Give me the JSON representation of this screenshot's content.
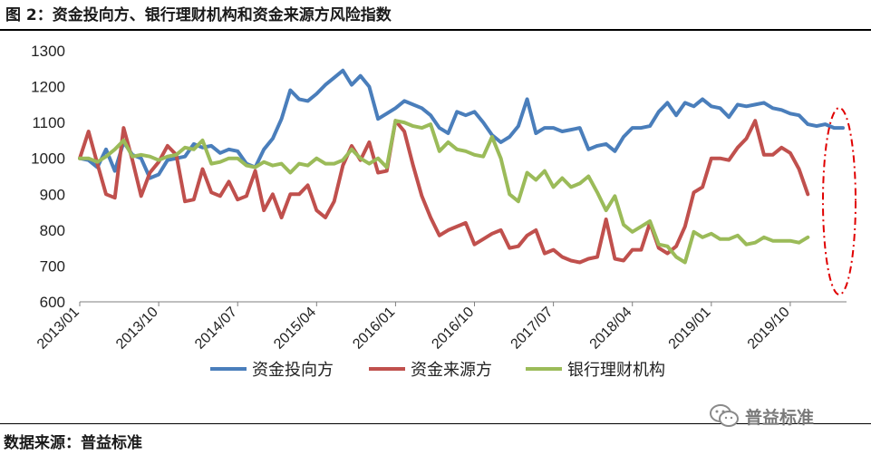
{
  "header": {
    "title": "图 2：资金投向方、银行理财机构和资金来源方风险指数"
  },
  "footer": {
    "source": "数据来源：普益标准",
    "watermark": "普益标准"
  },
  "chart_data": {
    "type": "line",
    "title": "",
    "xlabel": "",
    "ylabel": "",
    "ylim": [
      600,
      1300
    ],
    "yticks": [
      600,
      700,
      800,
      900,
      1000,
      1100,
      1200,
      1300
    ],
    "x_start": "2013/01",
    "x_tick_labels": [
      "2013/01",
      "2013/10",
      "2014/07",
      "2015/04",
      "2016/01",
      "2016/10",
      "2017/07",
      "2018/04",
      "2019/01",
      "2019/10"
    ],
    "legend_position": "bottom",
    "grid": false,
    "series": [
      {
        "name": "资金投向方",
        "color": "#4a7ebb",
        "values": [
          1000,
          995,
          975,
          1025,
          965,
          1045,
          1010,
          1000,
          945,
          955,
          995,
          1000,
          1005,
          1040,
          1030,
          1035,
          1015,
          1025,
          1020,
          985,
          975,
          1025,
          1055,
          1110,
          1190,
          1165,
          1160,
          1180,
          1205,
          1225,
          1245,
          1205,
          1230,
          1200,
          1110,
          1125,
          1140,
          1160,
          1150,
          1140,
          1120,
          1085,
          1070,
          1130,
          1120,
          1130,
          1100,
          1065,
          1045,
          1060,
          1090,
          1165,
          1070,
          1085,
          1085,
          1075,
          1080,
          1085,
          1025,
          1035,
          1040,
          1020,
          1060,
          1085,
          1085,
          1090,
          1130,
          1155,
          1120,
          1155,
          1145,
          1165,
          1145,
          1140,
          1115,
          1150,
          1145,
          1150,
          1155,
          1140,
          1135,
          1125,
          1120,
          1095,
          1090,
          1095,
          1085,
          1085
        ]
      },
      {
        "name": "资金来源方",
        "color": "#c0504d",
        "values": [
          1000,
          1075,
          985,
          900,
          890,
          1085,
          995,
          895,
          960,
          990,
          1035,
          1010,
          880,
          885,
          970,
          905,
          895,
          935,
          885,
          895,
          965,
          855,
          900,
          835,
          900,
          900,
          925,
          855,
          835,
          880,
          980,
          1035,
          995,
          1045,
          960,
          965,
          1105,
          1075,
          980,
          895,
          835,
          785,
          800,
          810,
          820,
          760,
          775,
          790,
          800,
          750,
          755,
          785,
          800,
          735,
          745,
          725,
          715,
          710,
          720,
          725,
          830,
          720,
          715,
          745,
          745,
          820,
          750,
          735,
          755,
          810,
          905,
          920,
          1000,
          1000,
          995,
          1030,
          1055,
          1105,
          1010,
          1010,
          1030,
          1015,
          970,
          900
        ]
      },
      {
        "name": "银行理财机构",
        "color": "#9bbb59",
        "values": [
          1000,
          1000,
          990,
          1005,
          1025,
          1050,
          1005,
          1010,
          1005,
          995,
          1005,
          1010,
          1030,
          1025,
          1050,
          985,
          990,
          1000,
          1000,
          980,
          975,
          990,
          980,
          985,
          960,
          985,
          980,
          1000,
          985,
          985,
          995,
          1025,
          1000,
          985,
          1000,
          975,
          1105,
          1100,
          1090,
          1085,
          1095,
          1020,
          1045,
          1025,
          1020,
          1010,
          1005,
          1060,
          1000,
          900,
          880,
          960,
          940,
          965,
          920,
          945,
          920,
          930,
          950,
          905,
          855,
          895,
          815,
          795,
          810,
          825,
          760,
          755,
          725,
          710,
          795,
          780,
          790,
          775,
          775,
          785,
          760,
          765,
          780,
          770,
          770,
          770,
          765,
          780
        ]
      }
    ]
  }
}
